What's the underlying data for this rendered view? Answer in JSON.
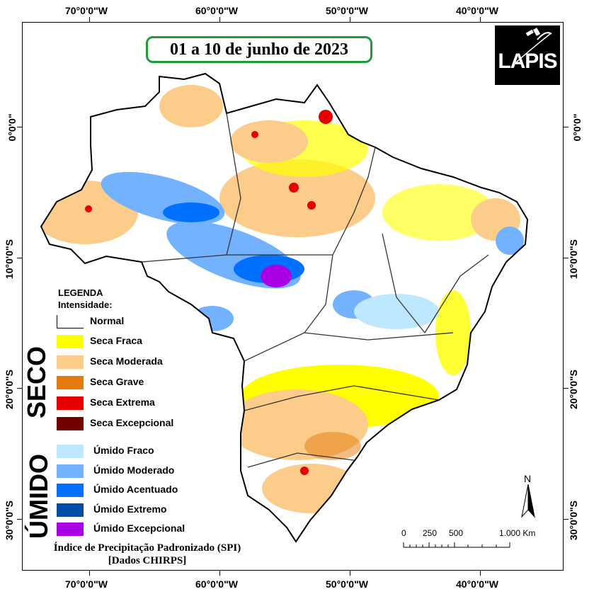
{
  "map": {
    "title": "01 a 10 de junho de 2023",
    "logo_text": "LAPIS",
    "logo_icon": "satellite-icon",
    "top_longitudes": [
      "70°0'0\"W",
      "60°0'0\"W",
      "50°0'0\"W",
      "40°0'0\"W"
    ],
    "bottom_longitudes": [
      "70°0'0\"W",
      "60°0'0\"W",
      "50°0'0\"W",
      "40°0'0\"W"
    ],
    "left_latitudes": [
      "0°0'0\"",
      "10°0'0\"S",
      "20°0'0\"S",
      "30°0'0\"S"
    ],
    "right_latitudes": [
      "0°0'0\"",
      "10°0'0\"S",
      "20°0'0\"S",
      "30°0'0\"S"
    ]
  },
  "legend": {
    "title_line1": "LEGENDA",
    "title_line2": "Intensidade:",
    "normal": {
      "label": "Normal",
      "color": "#ffffff"
    },
    "dry_group": "SECO",
    "wet_group": "ÚMIDO",
    "dry": [
      {
        "label": "Seca Fraca",
        "color": "#ffff00"
      },
      {
        "label": "Seca Moderada",
        "color": "#fccc8a"
      },
      {
        "label": "Seca Grave",
        "color": "#e67a0c"
      },
      {
        "label": "Seca Extrema",
        "color": "#e60000"
      },
      {
        "label": "Seca Excepcional",
        "color": "#730000"
      }
    ],
    "wet": [
      {
        "label": "Úmido Fraco",
        "color": "#bee8ff"
      },
      {
        "label": "Úmido Moderado",
        "color": "#73b2ff"
      },
      {
        "label": "Úmido Acentuado",
        "color": "#0070ff"
      },
      {
        "label": "Úmido Extremo",
        "color": "#004da8"
      },
      {
        "label": "Úmido Excepcional",
        "color": "#a900e6"
      }
    ]
  },
  "source": {
    "line1": "Índice de Precipitação Padronizado (SPI)",
    "line2": "[Dados CHIRPS]"
  },
  "scale_bar": {
    "labels": [
      "0",
      "250",
      "500",
      "1.000 Km"
    ]
  },
  "north_arrow": {
    "label": "N"
  }
}
